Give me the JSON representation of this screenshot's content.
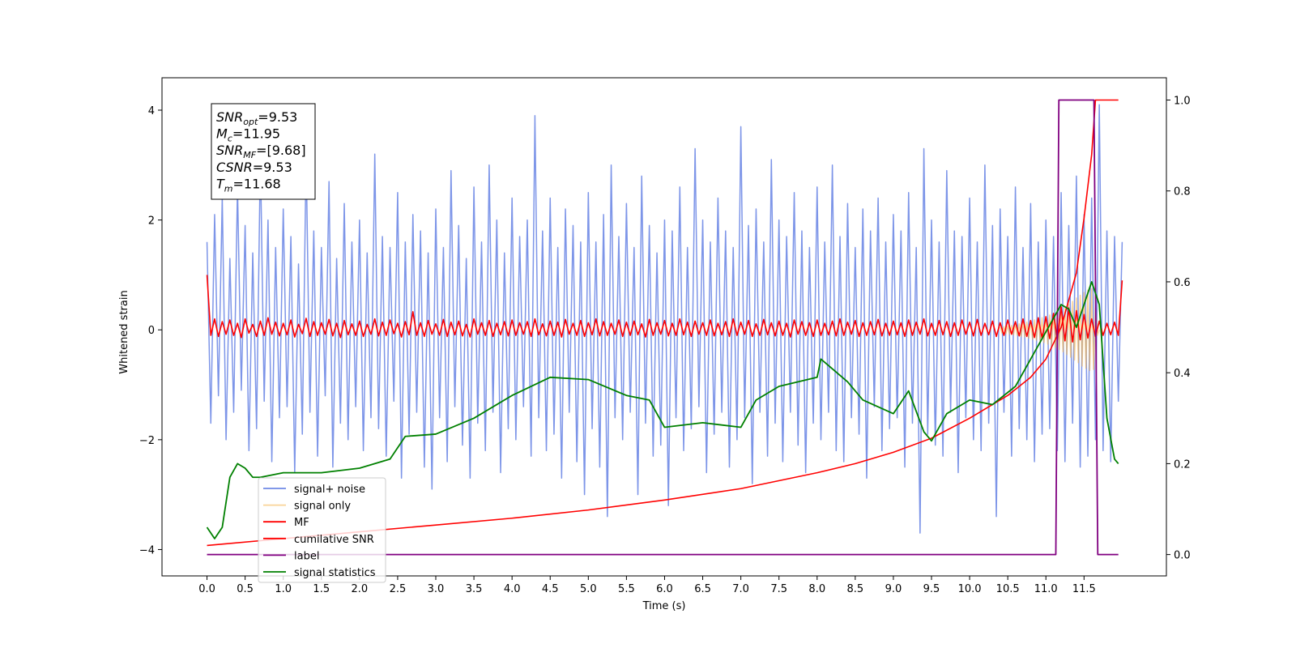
{
  "chart_data": {
    "type": "line",
    "xlabel": "Time (s)",
    "ylabel": "Whitened strain",
    "xlim": [
      -0.59,
      12.58
    ],
    "ylim": [
      -4.48,
      4.59
    ],
    "y2lim": [
      -0.047,
      1.049
    ],
    "xticks": [
      {
        "value": 0,
        "label": "0.0"
      },
      0.5,
      {
        "value": 1,
        "label": "1.0"
      },
      1.5,
      {
        "value": 2,
        "label": "2.0"
      },
      2.5,
      {
        "value": 3,
        "label": "3.0"
      },
      3.5,
      {
        "value": 4,
        "label": "4.0"
      },
      4.5,
      {
        "value": 5,
        "label": "5.0"
      },
      5.5,
      {
        "value": 6,
        "label": "6.0"
      },
      6.5,
      {
        "value": 7,
        "label": "7.0"
      },
      7.5,
      {
        "value": 8,
        "label": "8.0"
      },
      8.5,
      {
        "value": 9,
        "label": "9.0"
      },
      9.5,
      {
        "value": 10,
        "label": "10.0"
      },
      10.5,
      {
        "value": 11,
        "label": "11.0"
      },
      11.5
    ],
    "yticks": [
      {
        "value": -4,
        "label": "−4"
      },
      {
        "value": -2,
        "label": "−2"
      },
      0,
      2,
      4
    ],
    "y2ticks": [
      {
        "value": 0,
        "label": "0.0"
      },
      0.2,
      0.4,
      0.6,
      0.8,
      {
        "value": 1,
        "label": "1.0"
      }
    ],
    "legend": "lower left",
    "annotation": [
      {
        "name": "SNR",
        "sub": "opt",
        "text": "=9.53"
      },
      {
        "name": "M",
        "sub": "c",
        "text": "=11.95"
      },
      {
        "name": "SNR",
        "sub": "MF",
        "text": "=[9.68]"
      },
      {
        "name": "CSNR",
        "text": "=9.53"
      },
      {
        "name": "T",
        "sub": "m",
        "text": "=11.68"
      }
    ],
    "x": [
      0,
      0.05,
      0.1,
      0.15,
      0.2,
      0.25,
      0.3,
      0.35,
      0.4,
      0.45,
      0.5,
      0.55,
      0.6,
      0.65,
      0.7,
      0.75,
      0.8,
      0.85,
      0.9,
      0.95,
      1,
      1.05,
      1.1,
      1.15,
      1.2,
      1.25,
      1.3,
      1.35,
      1.4,
      1.45,
      1.5,
      1.55,
      1.6,
      1.65,
      1.7,
      1.75,
      1.8,
      1.85,
      1.9,
      1.95,
      2,
      2.05,
      2.1,
      2.15,
      2.2,
      2.25,
      2.3,
      2.35,
      2.4,
      2.45,
      2.5,
      2.55,
      2.6,
      2.65,
      2.7,
      2.75,
      2.8,
      2.85,
      2.9,
      2.95,
      3,
      3.05,
      3.1,
      3.15,
      3.2,
      3.25,
      3.3,
      3.35,
      3.4,
      3.45,
      3.5,
      3.55,
      3.6,
      3.65,
      3.7,
      3.75,
      3.8,
      3.85,
      3.9,
      3.95,
      4,
      4.05,
      4.1,
      4.15,
      4.2,
      4.25,
      4.3,
      4.35,
      4.4,
      4.45,
      4.5,
      4.55,
      4.6,
      4.65,
      4.7,
      4.75,
      4.8,
      4.85,
      4.9,
      4.95,
      5,
      5.05,
      5.1,
      5.15,
      5.2,
      5.25,
      5.3,
      5.35,
      5.4,
      5.45,
      5.5,
      5.55,
      5.6,
      5.65,
      5.7,
      5.75,
      5.8,
      5.85,
      5.9,
      5.95,
      6,
      6.05,
      6.1,
      6.15,
      6.2,
      6.25,
      6.3,
      6.35,
      6.4,
      6.45,
      6.5,
      6.55,
      6.6,
      6.65,
      6.7,
      6.75,
      6.8,
      6.85,
      6.9,
      6.95,
      7,
      7.05,
      7.1,
      7.15,
      7.2,
      7.25,
      7.3,
      7.35,
      7.4,
      7.45,
      7.5,
      7.55,
      7.6,
      7.65,
      7.7,
      7.75,
      7.8,
      7.85,
      7.9,
      7.95,
      8,
      8.05,
      8.1,
      8.15,
      8.2,
      8.25,
      8.3,
      8.35,
      8.4,
      8.45,
      8.5,
      8.55,
      8.6,
      8.65,
      8.7,
      8.75,
      8.8,
      8.85,
      8.9,
      8.95,
      9,
      9.05,
      9.1,
      9.15,
      9.2,
      9.25,
      9.3,
      9.35,
      9.4,
      9.45,
      9.5,
      9.55,
      9.6,
      9.65,
      9.7,
      9.75,
      9.8,
      9.85,
      9.9,
      9.95,
      10,
      10.05,
      10.1,
      10.15,
      10.2,
      10.25,
      10.3,
      10.35,
      10.4,
      10.45,
      10.5,
      10.55,
      10.6,
      10.65,
      10.7,
      10.75,
      10.8,
      10.85,
      10.9,
      10.95,
      11,
      11.05,
      11.1,
      11.15,
      11.2,
      11.25,
      11.3,
      11.35,
      11.4,
      11.45,
      11.5,
      11.55,
      11.6,
      11.65,
      11.7,
      11.75,
      11.8,
      11.85,
      11.9,
      11.95,
      12
    ],
    "series": [
      {
        "name": "signal+ noise",
        "color": "#6f8ae6",
        "values": [
          1.6,
          -1.7,
          2.1,
          -1.2,
          2.4,
          -2.0,
          1.3,
          -1.5,
          2.6,
          -1.1,
          1.9,
          -2.2,
          1.4,
          -1.8,
          3.2,
          -1.3,
          2.0,
          -2.4,
          1.5,
          -1.6,
          2.2,
          -1.4,
          1.7,
          -2.6,
          1.2,
          -1.9,
          3.2,
          -1.5,
          1.8,
          -2.3,
          1.5,
          -1.2,
          2.7,
          -2.5,
          1.3,
          -1.7,
          2.3,
          -2.0,
          1.6,
          -1.4,
          2.0,
          -2.2,
          1.4,
          -1.6,
          3.2,
          -1.8,
          1.7,
          -2.3,
          1.5,
          -1.3,
          2.5,
          -2.7,
          1.6,
          -1.9,
          2.1,
          -1.5,
          1.8,
          -2.5,
          1.4,
          -2.9,
          2.2,
          -1.6,
          1.5,
          -2.4,
          2.9,
          -1.4,
          1.9,
          -2.1,
          1.3,
          -2.7,
          2.6,
          -1.7,
          1.6,
          -2.2,
          3.0,
          -1.5,
          2.0,
          -2.6,
          1.4,
          -1.8,
          2.4,
          -2.0,
          1.7,
          -1.4,
          2.0,
          -2.3,
          3.9,
          -1.6,
          1.8,
          -2.2,
          2.4,
          -1.9,
          1.5,
          -2.7,
          2.2,
          -1.5,
          1.9,
          -2.4,
          1.6,
          -3.0,
          2.5,
          -1.8,
          1.6,
          -2.5,
          2.1,
          -3.4,
          3.0,
          -1.6,
          1.7,
          -2.0,
          2.3,
          -1.5,
          1.5,
          -3.0,
          2.8,
          -1.7,
          1.9,
          -2.3,
          1.4,
          -2.1,
          2.0,
          -3.2,
          1.8,
          -1.6,
          2.6,
          -2.2,
          1.5,
          -1.8,
          3.3,
          -1.4,
          2.0,
          -2.6,
          1.6,
          -1.9,
          2.4,
          -1.5,
          1.8,
          -2.5,
          1.5,
          -2.0,
          3.7,
          -1.6,
          1.9,
          -2.8,
          2.2,
          -1.5,
          1.6,
          -2.3,
          3.1,
          -1.7,
          2.0,
          -2.4,
          1.7,
          -1.5,
          2.5,
          -2.1,
          1.8,
          -2.6,
          1.5,
          -1.7,
          2.6,
          -2.0,
          1.6,
          -1.5,
          3.0,
          -2.2,
          1.7,
          -2.4,
          2.3,
          -1.6,
          1.5,
          -1.9,
          2.2,
          -2.7,
          1.8,
          -1.4,
          2.4,
          -2.2,
          1.6,
          -1.8,
          2.1,
          -1.6,
          1.8,
          -2.5,
          2.5,
          -1.7,
          1.5,
          -3.7,
          3.3,
          -1.9,
          2.0,
          -2.1,
          1.6,
          -2.3,
          2.9,
          -1.5,
          1.8,
          -2.6,
          1.7,
          -1.6,
          2.4,
          -2.0,
          1.6,
          -2.2,
          3.0,
          -1.7,
          1.9,
          -3.4,
          2.2,
          -1.5,
          1.7,
          -2.3,
          2.6,
          -1.8,
          1.5,
          -2.0,
          2.3,
          -2.4,
          1.6,
          -1.9,
          2.0,
          -1.8,
          1.7,
          -2.2,
          2.5,
          -2.4,
          1.9,
          -1.7,
          2.8,
          -2.5,
          2.1,
          -2.3,
          2.4,
          -2.0,
          4.1,
          -2.2,
          1.8,
          -2.4,
          1.7,
          -1.3,
          1.6
        ]
      },
      {
        "name": "signal only",
        "color": "#f5b041",
        "x": [
          10.4,
          10.425,
          10.45,
          10.475,
          10.5,
          10.525,
          10.55,
          10.575,
          10.6,
          10.625,
          10.65,
          10.675,
          10.7,
          10.725,
          10.75,
          10.775,
          10.8,
          10.825,
          10.85,
          10.875,
          10.9,
          10.925,
          10.95,
          10.975,
          11.0,
          11.025,
          11.05,
          11.075,
          11.1,
          11.125,
          11.15,
          11.175,
          11.2,
          11.225,
          11.25,
          11.275,
          11.3,
          11.325,
          11.35,
          11.375,
          11.4,
          11.425,
          11.45,
          11.475,
          11.5,
          11.525,
          11.55,
          11.575,
          11.6,
          11.625,
          11.65,
          11.675,
          11.7
        ],
        "values": [
          0.05,
          -0.06,
          0.06,
          -0.07,
          0.07,
          -0.08,
          0.08,
          -0.09,
          0.1,
          -0.1,
          0.11,
          -0.12,
          0.13,
          -0.13,
          0.14,
          -0.15,
          0.16,
          -0.17,
          0.18,
          -0.19,
          0.2,
          -0.21,
          0.22,
          -0.23,
          0.24,
          -0.26,
          0.27,
          -0.29,
          0.3,
          -0.32,
          0.34,
          -0.36,
          0.38,
          -0.4,
          0.42,
          -0.45,
          0.47,
          -0.5,
          0.52,
          -0.55,
          0.58,
          -0.6,
          0.63,
          -0.66,
          0.68,
          -0.7,
          0.72,
          -0.74,
          0.75,
          -0.72,
          0.4,
          -0.1,
          0.0
        ]
      },
      {
        "name": "MF",
        "color": "#ff0000",
        "values": [
          1.0,
          -0.1,
          0.2,
          -0.12,
          0.15,
          -0.08,
          0.18,
          -0.1,
          0.12,
          -0.14,
          0.2,
          -0.06,
          0.1,
          -0.12,
          0.16,
          -0.1,
          0.22,
          -0.08,
          0.14,
          -0.11,
          0.12,
          -0.09,
          0.18,
          -0.13,
          0.1,
          -0.07,
          0.21,
          -0.12,
          0.15,
          -0.1,
          0.13,
          -0.08,
          0.19,
          -0.11,
          0.12,
          -0.14,
          0.17,
          -0.09,
          0.11,
          -0.1,
          0.16,
          -0.12,
          0.1,
          -0.08,
          0.2,
          -0.11,
          0.14,
          -0.1,
          0.18,
          -0.07,
          0.12,
          -0.13,
          0.15,
          -0.09,
          0.33,
          -0.1,
          0.13,
          -0.12,
          0.17,
          -0.08,
          0.11,
          -0.1,
          0.19,
          -0.12,
          0.14,
          -0.09,
          0.16,
          -0.11,
          0.1,
          -0.13,
          0.2,
          -0.08,
          0.13,
          -0.1,
          0.17,
          -0.12,
          0.12,
          -0.09,
          0.15,
          -0.11,
          0.18,
          -0.1,
          0.13,
          -0.08,
          0.15,
          -0.12,
          0.2,
          -0.09,
          0.11,
          -0.11,
          0.16,
          -0.1,
          0.14,
          -0.13,
          0.19,
          -0.08,
          0.12,
          -0.1,
          0.17,
          -0.12,
          0.13,
          -0.09,
          0.2,
          -0.11,
          0.15,
          -0.1,
          0.12,
          -0.08,
          0.18,
          -0.12,
          0.14,
          -0.1,
          0.16,
          -0.09,
          0.11,
          -0.13,
          0.19,
          -0.1,
          0.13,
          -0.08,
          0.17,
          -0.11,
          0.12,
          -0.1,
          0.2,
          -0.09,
          0.14,
          -0.12,
          0.16,
          -0.08,
          0.13,
          -0.1,
          0.18,
          -0.11,
          0.12,
          -0.09,
          0.15,
          -0.12,
          0.2,
          -0.1,
          0.14,
          -0.08,
          0.17,
          -0.12,
          0.11,
          -0.1,
          0.19,
          -0.09,
          0.13,
          -0.11,
          0.16,
          -0.1,
          0.12,
          -0.13,
          0.18,
          -0.08,
          0.15,
          -0.1,
          0.13,
          -0.12,
          0.18,
          -0.1,
          0.12,
          -0.09,
          0.16,
          -0.11,
          0.2,
          -0.1,
          0.14,
          -0.08,
          0.17,
          -0.12,
          0.13,
          -0.1,
          0.15,
          -0.09,
          0.19,
          -0.11,
          0.12,
          -0.1,
          0.16,
          -0.09,
          0.13,
          -0.12,
          0.18,
          -0.1,
          0.14,
          -0.08,
          0.2,
          -0.11,
          0.12,
          -0.1,
          0.17,
          -0.09,
          0.15,
          -0.12,
          0.13,
          -0.1,
          0.18,
          -0.08,
          0.14,
          -0.11,
          0.19,
          -0.1,
          0.12,
          -0.09,
          0.16,
          -0.12,
          0.13,
          -0.1,
          0.18,
          -0.08,
          0.15,
          -0.11,
          0.2,
          -0.12,
          0.17,
          -0.14,
          0.22,
          -0.15,
          0.24,
          -0.16,
          0.3,
          -0.18,
          0.42,
          -0.2,
          0.4,
          -0.22,
          0.35,
          -0.18,
          0.28,
          -0.15,
          0.2,
          -0.12,
          0.16,
          -0.1,
          0.12,
          -0.09,
          0.14,
          -0.1,
          0.9
        ]
      },
      {
        "name": "cumilative SNR",
        "color": "#ff0000",
        "axis": "y2",
        "x": [
          0,
          1,
          2,
          3,
          4,
          5,
          6,
          7,
          8,
          8.5,
          9,
          9.5,
          10,
          10.5,
          10.8,
          11,
          11.2,
          11.4,
          11.5,
          11.6,
          11.65,
          11.95
        ],
        "values": [
          0.02,
          0.035,
          0.05,
          0.065,
          0.08,
          0.098,
          0.12,
          0.145,
          0.18,
          0.2,
          0.225,
          0.256,
          0.3,
          0.35,
          0.39,
          0.43,
          0.5,
          0.62,
          0.74,
          0.88,
          1.0,
          1.0
        ]
      },
      {
        "name": "label",
        "color": "#800080",
        "axis": "y2",
        "x": [
          0,
          11.13,
          11.17,
          11.63,
          11.68,
          11.95
        ],
        "values": [
          0,
          0,
          1,
          1,
          0,
          0
        ]
      },
      {
        "name": "signal statistics",
        "color": "#008000",
        "axis": "y2",
        "x": [
          0,
          0.1,
          0.2,
          0.3,
          0.4,
          0.5,
          0.6,
          0.7,
          1.0,
          1.5,
          2.0,
          2.4,
          2.6,
          3.0,
          3.5,
          3.8,
          4.0,
          4.5,
          5.0,
          5.5,
          5.8,
          6.0,
          6.5,
          7.0,
          7.2,
          7.5,
          8.0,
          8.05,
          8.4,
          8.6,
          9.0,
          9.2,
          9.4,
          9.5,
          9.7,
          10.0,
          10.3,
          10.6,
          10.8,
          11.0,
          11.2,
          11.3,
          11.4,
          11.6,
          11.7,
          11.8,
          11.9,
          11.95
        ],
        "values": [
          0.06,
          0.035,
          0.06,
          0.17,
          0.2,
          0.19,
          0.17,
          0.17,
          0.18,
          0.18,
          0.19,
          0.21,
          0.26,
          0.265,
          0.3,
          0.33,
          0.35,
          0.39,
          0.385,
          0.35,
          0.34,
          0.28,
          0.29,
          0.28,
          0.34,
          0.37,
          0.39,
          0.43,
          0.38,
          0.34,
          0.31,
          0.36,
          0.27,
          0.25,
          0.31,
          0.34,
          0.33,
          0.37,
          0.43,
          0.49,
          0.55,
          0.54,
          0.5,
          0.6,
          0.55,
          0.3,
          0.21,
          0.2
        ]
      }
    ]
  }
}
